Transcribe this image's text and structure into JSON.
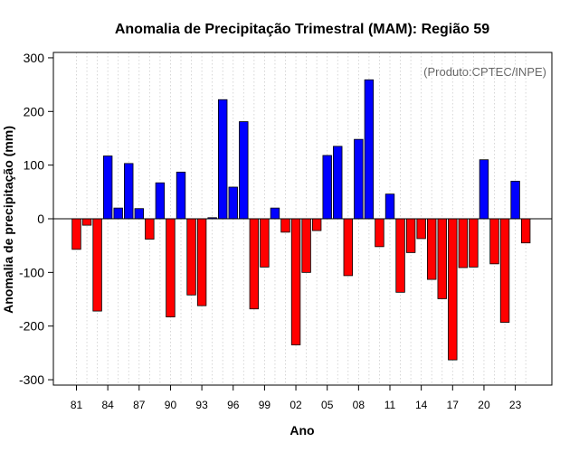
{
  "chart_data": {
    "type": "bar",
    "title": "Anomalia de Precipitação Trimestral (MAM): Região 59",
    "xlabel": "Ano",
    "ylabel": "Anomalia de precipitação (mm)",
    "annotation": "(Produto:CPTEC/INPE)",
    "ylim": [
      -310,
      310
    ],
    "yticks": [
      -300,
      -200,
      -100,
      0,
      100,
      200,
      300
    ],
    "categories": [
      1981,
      1982,
      1983,
      1984,
      1985,
      1986,
      1987,
      1988,
      1989,
      1990,
      1991,
      1992,
      1993,
      1994,
      1995,
      1996,
      1997,
      1998,
      1999,
      2000,
      2001,
      2002,
      2003,
      2004,
      2005,
      2006,
      2007,
      2008,
      2009,
      2010,
      2011,
      2012,
      2013,
      2014,
      2015,
      2016,
      2017,
      2018,
      2019,
      2020,
      2021,
      2022,
      2023,
      2024
    ],
    "values": [
      -57,
      -12,
      -172,
      117,
      20,
      103,
      19,
      -38,
      67,
      -183,
      87,
      -142,
      -162,
      2,
      222,
      59,
      181,
      -168,
      -90,
      20,
      -25,
      -235,
      -100,
      -22,
      118,
      135,
      -106,
      148,
      259,
      -52,
      46,
      -137,
      -63,
      -37,
      -113,
      -149,
      -263,
      -91,
      -90,
      110,
      -84,
      -193,
      70,
      -45
    ],
    "xtick_labels": [
      "81",
      "84",
      "87",
      "90",
      "93",
      "96",
      "99",
      "02",
      "05",
      "08",
      "11",
      "14",
      "17",
      "20",
      "23"
    ],
    "xtick_years": [
      1981,
      1984,
      1987,
      1990,
      1993,
      1996,
      1999,
      2002,
      2005,
      2008,
      2011,
      2014,
      2017,
      2020,
      2023
    ],
    "grid": true,
    "colors": {
      "positive": "#0000ff",
      "negative": "#ff0000",
      "zero": "#000000",
      "grid": "#cccccc",
      "frame": "#000000"
    }
  }
}
